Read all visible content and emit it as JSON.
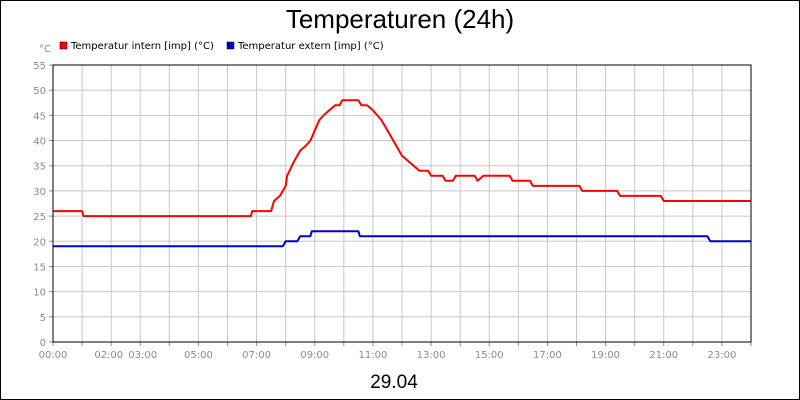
{
  "chart_data": {
    "type": "line",
    "title": "Temperaturen (24h)",
    "date_label": "29.04",
    "unit_label": "°C",
    "xlabel": "",
    "ylabel": "",
    "ylim": [
      0,
      55
    ],
    "yticks": [
      0,
      5,
      10,
      15,
      20,
      25,
      30,
      35,
      40,
      45,
      50,
      55
    ],
    "xlim": [
      0,
      24
    ],
    "xtick_labels": [
      {
        "t": 0,
        "label": "00:00"
      },
      {
        "t": 2,
        "label": "02:00"
      },
      {
        "t": 3,
        "label": "03:00"
      },
      {
        "t": 5,
        "label": "05:00"
      },
      {
        "t": 7,
        "label": "07:00"
      },
      {
        "t": 9,
        "label": "09:00"
      },
      {
        "t": 11,
        "label": "11:00"
      },
      {
        "t": 13,
        "label": "13:00"
      },
      {
        "t": 15,
        "label": "15:00"
      },
      {
        "t": 17,
        "label": "17:00"
      },
      {
        "t": 19,
        "label": "19:00"
      },
      {
        "t": 21,
        "label": "21:00"
      },
      {
        "t": 23,
        "label": "23:00"
      }
    ],
    "grid": true,
    "legend_position": "top-left",
    "series": [
      {
        "name": "Temperatur intern [imp] (°C)",
        "color": "#ff0000",
        "points": [
          [
            0,
            26
          ],
          [
            1,
            26
          ],
          [
            1.05,
            25
          ],
          [
            2,
            25
          ],
          [
            4,
            25
          ],
          [
            6,
            25
          ],
          [
            6.8,
            25
          ],
          [
            6.85,
            26
          ],
          [
            7.5,
            26
          ],
          [
            7.6,
            28
          ],
          [
            7.8,
            29
          ],
          [
            7.9,
            30
          ],
          [
            8.0,
            31
          ],
          [
            8.05,
            33
          ],
          [
            8.3,
            36
          ],
          [
            8.5,
            38
          ],
          [
            8.7,
            39
          ],
          [
            8.85,
            40
          ],
          [
            9.0,
            42
          ],
          [
            9.15,
            44
          ],
          [
            9.3,
            45
          ],
          [
            9.5,
            46
          ],
          [
            9.7,
            47
          ],
          [
            9.85,
            47
          ],
          [
            9.95,
            48
          ],
          [
            10.5,
            48
          ],
          [
            10.6,
            47
          ],
          [
            10.8,
            47
          ],
          [
            11.0,
            46
          ],
          [
            11.15,
            45
          ],
          [
            11.3,
            44
          ],
          [
            11.5,
            42
          ],
          [
            11.8,
            39
          ],
          [
            12.0,
            37
          ],
          [
            12.2,
            36
          ],
          [
            12.4,
            35
          ],
          [
            12.6,
            34
          ],
          [
            12.9,
            34
          ],
          [
            13.0,
            33
          ],
          [
            13.4,
            33
          ],
          [
            13.5,
            32
          ],
          [
            13.75,
            32
          ],
          [
            13.85,
            33
          ],
          [
            14.5,
            33
          ],
          [
            14.6,
            32
          ],
          [
            14.8,
            33
          ],
          [
            15.7,
            33
          ],
          [
            15.8,
            32
          ],
          [
            16.4,
            32
          ],
          [
            16.5,
            31
          ],
          [
            17.0,
            31
          ],
          [
            18.1,
            31
          ],
          [
            18.2,
            30
          ],
          [
            19.4,
            30
          ],
          [
            19.5,
            29
          ],
          [
            20.9,
            29
          ],
          [
            21.0,
            28
          ],
          [
            24,
            28
          ]
        ]
      },
      {
        "name": "Temperatur extern [imp] (°C)",
        "color": "#0000cc",
        "points": [
          [
            0,
            19
          ],
          [
            4,
            19
          ],
          [
            7.9,
            19
          ],
          [
            8.0,
            20
          ],
          [
            8.4,
            20
          ],
          [
            8.5,
            21
          ],
          [
            8.85,
            21
          ],
          [
            8.9,
            22
          ],
          [
            10.5,
            22
          ],
          [
            10.55,
            21
          ],
          [
            15,
            21
          ],
          [
            22.5,
            21
          ],
          [
            22.6,
            20
          ],
          [
            24,
            20
          ]
        ]
      }
    ]
  }
}
